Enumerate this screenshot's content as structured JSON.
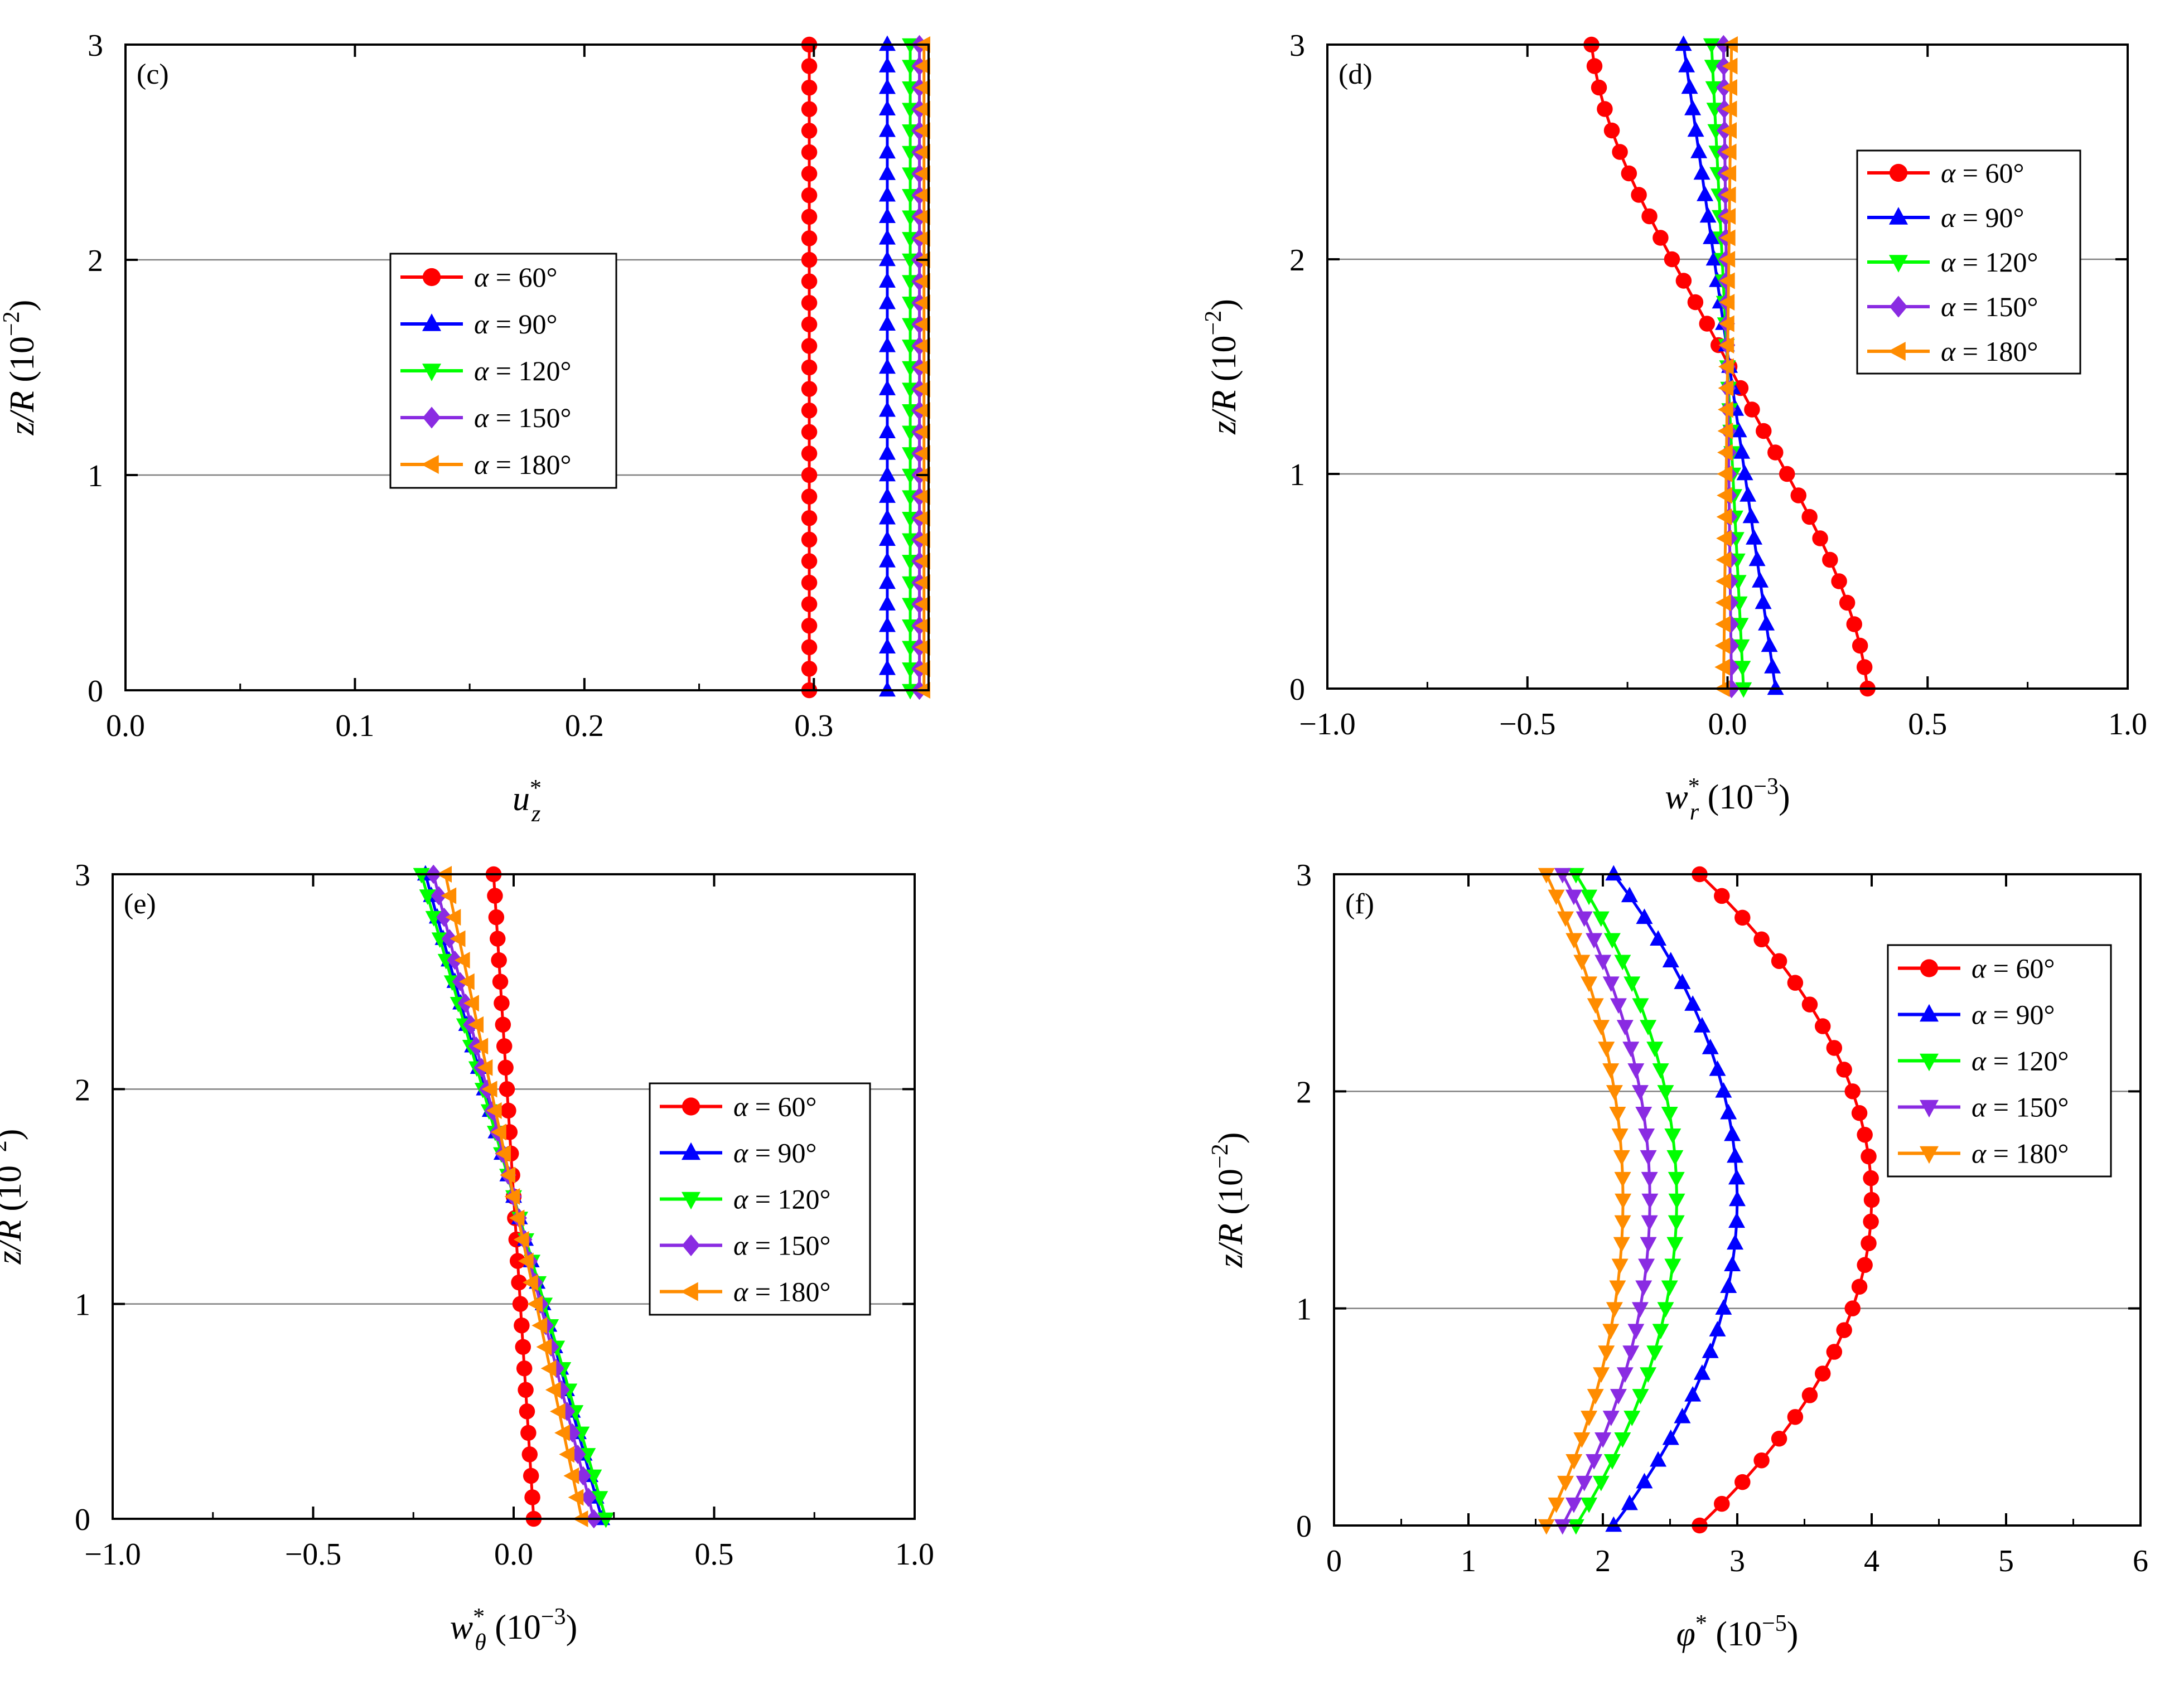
{
  "colors": {
    "a60": "#ff0000",
    "a90": "#0000ff",
    "a120": "#00ff00",
    "a150": "#8a2be2",
    "a180": "#ff8c00",
    "grid": "#808080",
    "axis": "#000000"
  },
  "chart_data": [
    {
      "id": "c",
      "type": "line",
      "panel_label": "(c)",
      "xlabel": {
        "main": "u",
        "sup": "*",
        "sub": "z",
        "unit": ""
      },
      "ylabel": {
        "main": "z/R",
        "unit": "(10",
        "exp": "−2",
        "close": ")"
      },
      "xlim": [
        0,
        0.35
      ],
      "ylim": [
        0,
        3
      ],
      "xticks": [
        0,
        0.1,
        0.2,
        0.3
      ],
      "xtick_labels": [
        "0.0",
        "0.1",
        "0.2",
        "0.3"
      ],
      "yticks": [
        0,
        1,
        2,
        3
      ],
      "ytick_labels": [
        "0",
        "1",
        "2",
        "3"
      ],
      "grid_y": [
        1,
        2
      ],
      "legend_position": "center-left",
      "series": [
        {
          "name": "α = 60°",
          "marker": "circle",
          "color": "#ff0000",
          "x0": 0.298,
          "slope": 0
        },
        {
          "name": "α = 90°",
          "marker": "triangle-up",
          "color": "#0000ff",
          "x0": 0.332,
          "slope": 0
        },
        {
          "name": "α = 120°",
          "marker": "triangle-down",
          "color": "#00ff00",
          "x0": 0.342,
          "slope": 0
        },
        {
          "name": "α = 150°",
          "marker": "diamond",
          "color": "#8a2be2",
          "x0": 0.346,
          "slope": 0
        },
        {
          "name": "α = 180°",
          "marker": "triangle-left",
          "color": "#ff8c00",
          "x0": 0.348,
          "slope": 0
        }
      ]
    },
    {
      "id": "d",
      "type": "line",
      "panel_label": "(d)",
      "xlabel": {
        "main": "w",
        "sup": "*",
        "sub": "r",
        "unit": " (10",
        "exp": "−3",
        "close": ")"
      },
      "ylabel": {
        "main": "z/R",
        "unit": "(10",
        "exp": "−2",
        "close": ")"
      },
      "xlim": [
        -1.0,
        1.0
      ],
      "ylim": [
        0,
        3
      ],
      "xticks": [
        -1.0,
        -0.5,
        0.0,
        0.5,
        1.0
      ],
      "xtick_labels": [
        "−1.0",
        "−0.5",
        "0.0",
        "0.5",
        "1.0"
      ],
      "yticks": [
        0,
        1,
        2,
        3
      ],
      "ytick_labels": [
        "0",
        "1",
        "2",
        "3"
      ],
      "grid_y": [
        1,
        2
      ],
      "legend_position": "top-right",
      "series": [
        {
          "name": "α = 60°",
          "marker": "circle",
          "color": "#ff0000",
          "x0": 0.35,
          "x_top": -0.34,
          "shape": "sym"
        },
        {
          "name": "α = 90°",
          "marker": "triangle-up",
          "color": "#0000ff",
          "x0": 0.12,
          "x_top": -0.11,
          "shape": "lin"
        },
        {
          "name": "α = 120°",
          "marker": "triangle-down",
          "color": "#00ff00",
          "x0": 0.04,
          "x_top": -0.04,
          "shape": "lin"
        },
        {
          "name": "α = 150°",
          "marker": "diamond",
          "color": "#8a2be2",
          "x0": 0.01,
          "x_top": -0.01,
          "shape": "lin"
        },
        {
          "name": "α = 180°",
          "marker": "triangle-left",
          "color": "#ff8c00",
          "x0": -0.01,
          "x_top": 0.01,
          "shape": "lin"
        }
      ]
    },
    {
      "id": "e",
      "type": "line",
      "panel_label": "(e)",
      "xlabel": {
        "main": "w",
        "sup": "*",
        "sub": "θ",
        "unit": " (10",
        "exp": "−3",
        "close": ")"
      },
      "ylabel": {
        "main": "z/R",
        "unit": "(10",
        "exp": "−2",
        "close": ")"
      },
      "xlim": [
        -1.0,
        1.0
      ],
      "ylim": [
        0,
        3
      ],
      "xticks": [
        -1.0,
        -0.5,
        0.0,
        0.5,
        1.0
      ],
      "xtick_labels": [
        "−1.0",
        "−0.5",
        "0.0",
        "0.5",
        "1.0"
      ],
      "yticks": [
        0,
        1,
        2,
        3
      ],
      "ytick_labels": [
        "0",
        "1",
        "2",
        "3"
      ],
      "grid_y": [
        1,
        2
      ],
      "legend_position": "center-right",
      "series": [
        {
          "name": "α = 60°",
          "marker": "circle",
          "color": "#ff0000",
          "x0": 0.05,
          "x_top": -0.05,
          "shape": "lin"
        },
        {
          "name": "α = 90°",
          "marker": "triangle-up",
          "color": "#0000ff",
          "x0": 0.22,
          "x_top": -0.22,
          "shape": "lin"
        },
        {
          "name": "α = 120°",
          "marker": "triangle-down",
          "color": "#00ff00",
          "x0": 0.23,
          "x_top": -0.23,
          "shape": "lin"
        },
        {
          "name": "α = 150°",
          "marker": "diamond",
          "color": "#8a2be2",
          "x0": 0.2,
          "x_top": -0.2,
          "shape": "lin"
        },
        {
          "name": "α = 180°",
          "marker": "triangle-left",
          "color": "#ff8c00",
          "x0": 0.17,
          "x_top": -0.17,
          "shape": "lin"
        }
      ]
    },
    {
      "id": "f",
      "type": "line",
      "panel_label": "(f)",
      "xlabel": {
        "main": "φ",
        "sup": "*",
        "sub": "",
        "unit": " (10",
        "exp": "−5",
        "close": ")"
      },
      "ylabel": {
        "main": "z/R",
        "unit": "(10",
        "exp": "−2",
        "close": ")"
      },
      "xlim": [
        0,
        6
      ],
      "ylim": [
        0,
        3
      ],
      "xticks": [
        0,
        1,
        2,
        3,
        4,
        5,
        6
      ],
      "xtick_labels": [
        "0",
        "1",
        "2",
        "3",
        "4",
        "5",
        "6"
      ],
      "yticks": [
        0,
        1,
        2,
        3
      ],
      "ytick_labels": [
        "0",
        "1",
        "2",
        "3"
      ],
      "grid_y": [
        1,
        2
      ],
      "legend_position": "top-right",
      "series": [
        {
          "name": "α = 60°",
          "marker": "circle",
          "color": "#ff0000",
          "x0": 2.72,
          "x_top": 2.72,
          "x_peak": 4.0,
          "shape": "arc"
        },
        {
          "name": "α = 90°",
          "marker": "triangle-up",
          "color": "#0000ff",
          "x0": 2.08,
          "x_top": 2.08,
          "x_peak": 3.0,
          "shape": "arc"
        },
        {
          "name": "α = 120°",
          "marker": "triangle-down",
          "color": "#00ff00",
          "x0": 1.8,
          "x_top": 1.8,
          "x_peak": 2.55,
          "shape": "arc"
        },
        {
          "name": "α = 150°",
          "marker": "triangle-down",
          "color": "#8a2be2",
          "x0": 1.7,
          "x_top": 1.7,
          "x_peak": 2.35,
          "shape": "arc"
        },
        {
          "name": "α = 180°",
          "marker": "triangle-down",
          "color": "#ff8c00",
          "x0": 1.58,
          "x_top": 1.58,
          "x_peak": 2.15,
          "shape": "arc"
        }
      ]
    }
  ]
}
